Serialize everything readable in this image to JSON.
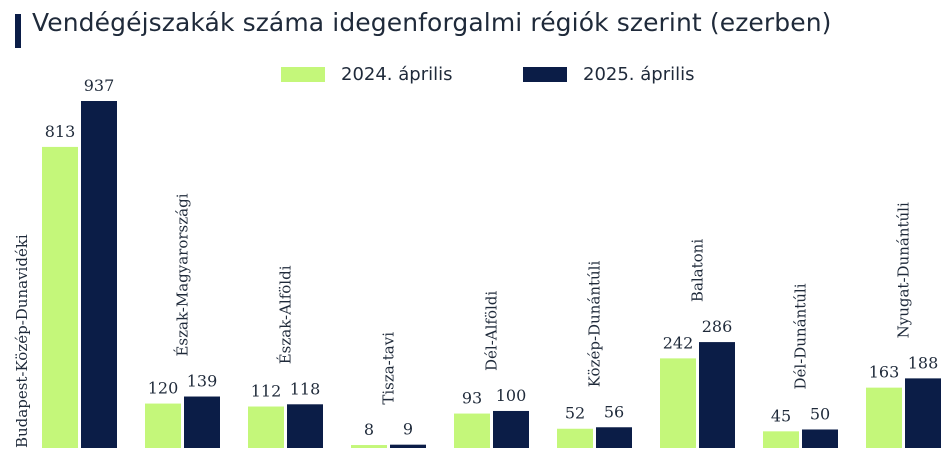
{
  "title": "Vendégéjszakák száma idegenforgalmi régiók szerint (ezerben)",
  "chart_data": {
    "type": "bar",
    "title": "Vendégéjszakák száma idegenforgalmi régiók szerint (ezerben)",
    "categories": [
      "Budapest-Közép-Dunavidéki",
      "Észak-Magyarországi",
      "Észak-Alföldi",
      "Tisza-tavi",
      "Dél-Alföldi",
      "Közép-Dunántúli",
      "Balatoni",
      "Dél-Dunántúli",
      "Nyugat-Dunántúli"
    ],
    "series": [
      {
        "name": "2024. április",
        "color": "#c4f77a",
        "values": [
          813,
          120,
          112,
          8,
          93,
          52,
          242,
          45,
          163
        ]
      },
      {
        "name": "2025. április",
        "color": "#0b1d47",
        "values": [
          937,
          139,
          118,
          9,
          100,
          56,
          286,
          50,
          188
        ]
      }
    ],
    "legend": "top-center",
    "grid": false,
    "ylim": [
      0,
      937
    ]
  }
}
